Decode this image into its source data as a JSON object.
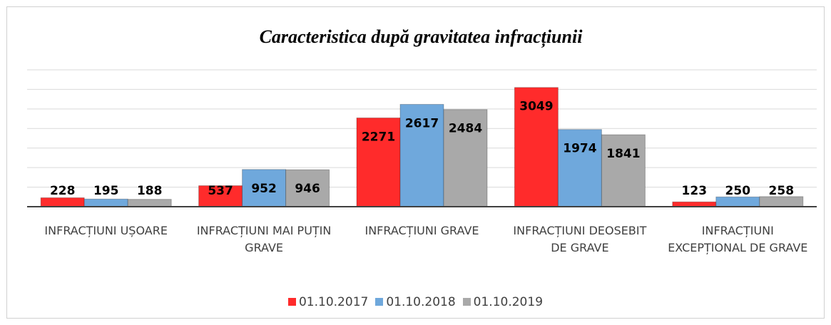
{
  "chart_data": {
    "type": "bar",
    "title": "Caracteristica după gravitatea infracțiunii",
    "categories": [
      "INFRACȚIUNI UȘOARE",
      "INFRACȚIUNI MAI PUȚIN GRAVE",
      "INFRACȚIUNI GRAVE",
      "INFRACȚIUNI DEOSEBIT DE GRAVE",
      "INFRACȚIUNI EXCEPȚIONAL DE GRAVE"
    ],
    "series": [
      {
        "name": "01.10.2017",
        "color": "#ff2b2b",
        "values": [
          228,
          537,
          2271,
          3049,
          123
        ]
      },
      {
        "name": "01.10.2018",
        "color": "#6fa8dc",
        "values": [
          195,
          952,
          2617,
          1974,
          250
        ]
      },
      {
        "name": "01.10.2019",
        "color": "#a9a9a9",
        "values": [
          188,
          946,
          2484,
          1841,
          258
        ]
      }
    ],
    "ylim": [
      0,
      3500
    ],
    "yticks": [
      0,
      500,
      1000,
      1500,
      2000,
      2500,
      3000,
      3500
    ],
    "grid": true
  }
}
